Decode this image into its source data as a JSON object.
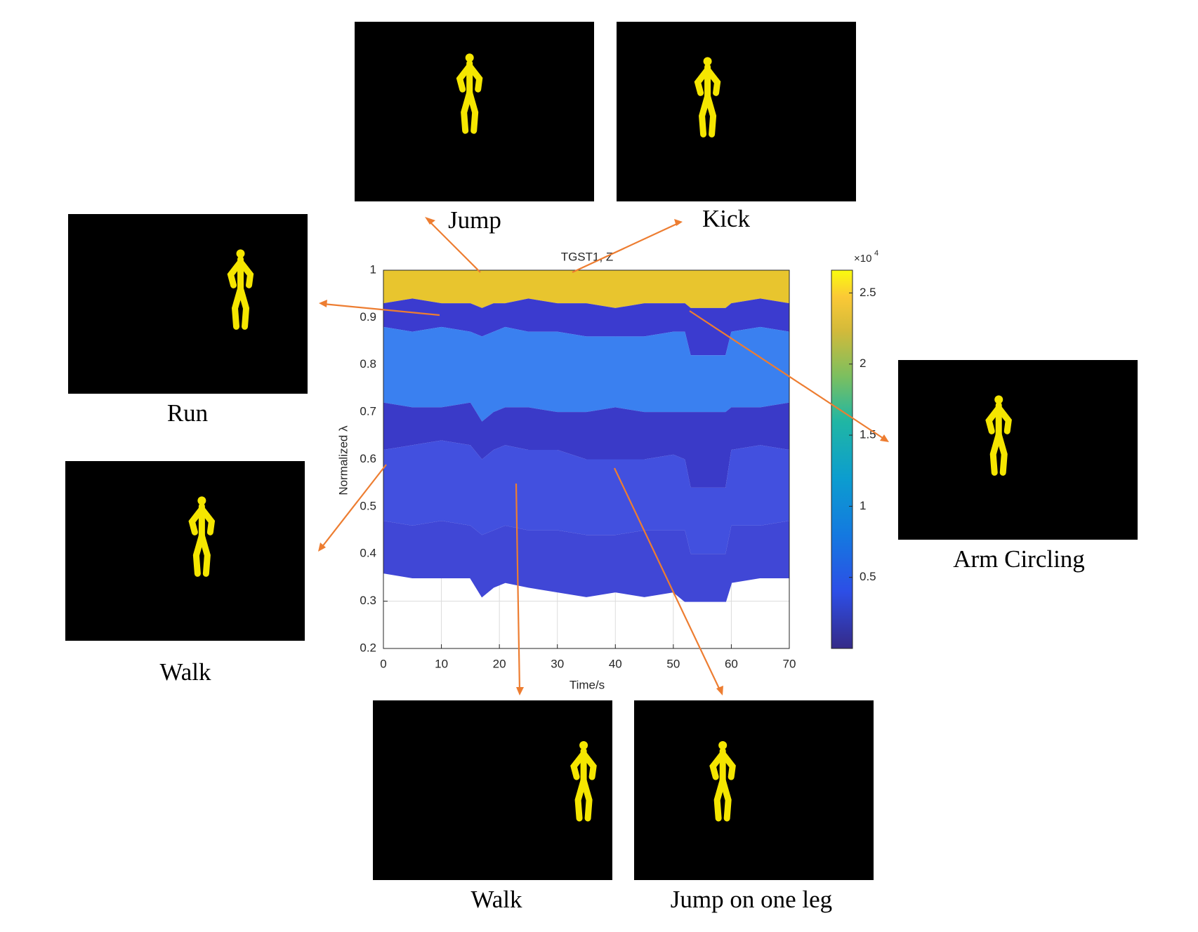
{
  "chart_data": {
    "type": "area",
    "title": "TGST1, Z",
    "xlabel": "Time/s",
    "ylabel": "Normalized λ",
    "x": [
      0,
      5,
      10,
      15,
      17,
      19,
      21,
      25,
      30,
      35,
      40,
      45,
      50,
      52,
      53,
      59,
      60,
      65,
      70
    ],
    "series": [
      {
        "color": "#e8c52e",
        "values": [
          1,
          1,
          1,
          1,
          1,
          1,
          1,
          1,
          1,
          1,
          1,
          1,
          1,
          1,
          1,
          1,
          1,
          1,
          1
        ]
      },
      {
        "color": "#3b3bcf",
        "values": [
          0.93,
          0.94,
          0.93,
          0.93,
          0.92,
          0.93,
          0.93,
          0.94,
          0.93,
          0.93,
          0.92,
          0.93,
          0.93,
          0.93,
          0.92,
          0.92,
          0.93,
          0.94,
          0.93
        ]
      },
      {
        "color": "#3a80f0",
        "values": [
          0.88,
          0.87,
          0.88,
          0.87,
          0.86,
          0.87,
          0.88,
          0.87,
          0.87,
          0.86,
          0.86,
          0.86,
          0.87,
          0.87,
          0.82,
          0.82,
          0.87,
          0.88,
          0.87
        ]
      },
      {
        "color": "#3a3ac8",
        "values": [
          0.72,
          0.71,
          0.71,
          0.72,
          0.68,
          0.7,
          0.71,
          0.71,
          0.7,
          0.7,
          0.71,
          0.7,
          0.7,
          0.7,
          0.7,
          0.7,
          0.71,
          0.71,
          0.72
        ]
      },
      {
        "color": "#4250df",
        "values": [
          0.62,
          0.63,
          0.64,
          0.63,
          0.6,
          0.62,
          0.63,
          0.62,
          0.62,
          0.6,
          0.6,
          0.6,
          0.61,
          0.6,
          0.54,
          0.54,
          0.62,
          0.63,
          0.62
        ]
      },
      {
        "color": "#4047d6",
        "values": [
          0.47,
          0.46,
          0.47,
          0.46,
          0.44,
          0.45,
          0.46,
          0.45,
          0.45,
          0.44,
          0.44,
          0.45,
          0.45,
          0.45,
          0.4,
          0.4,
          0.46,
          0.46,
          0.47
        ]
      },
      {
        "color": "#4047d6",
        "values": [
          0.36,
          0.35,
          0.35,
          0.35,
          0.31,
          0.33,
          0.34,
          0.33,
          0.32,
          0.31,
          0.32,
          0.31,
          0.32,
          0.3,
          0.3,
          0.3,
          0.34,
          0.35,
          0.35
        ]
      }
    ],
    "xlim": [
      0,
      70
    ],
    "xticks": [
      0,
      10,
      20,
      30,
      40,
      50,
      60,
      70
    ],
    "ylim": [
      0.2,
      1
    ],
    "yticks": [
      0.2,
      0.3,
      0.4,
      0.5,
      0.6,
      0.7,
      0.8,
      0.9,
      1
    ],
    "grid": true,
    "colorbar": {
      "lim": [
        0,
        2.66
      ],
      "ticks": [
        0.5,
        1,
        1.5,
        2,
        2.5
      ],
      "multiplier": {
        "base": "×10",
        "exponent": "4"
      }
    }
  },
  "panels": [
    {
      "label": "Jump"
    },
    {
      "label": "Kick"
    },
    {
      "label": "Run"
    },
    {
      "label": "Walk"
    },
    {
      "label": "Arm Circling"
    },
    {
      "label": "Walk"
    },
    {
      "label": "Jump on one leg"
    }
  ]
}
